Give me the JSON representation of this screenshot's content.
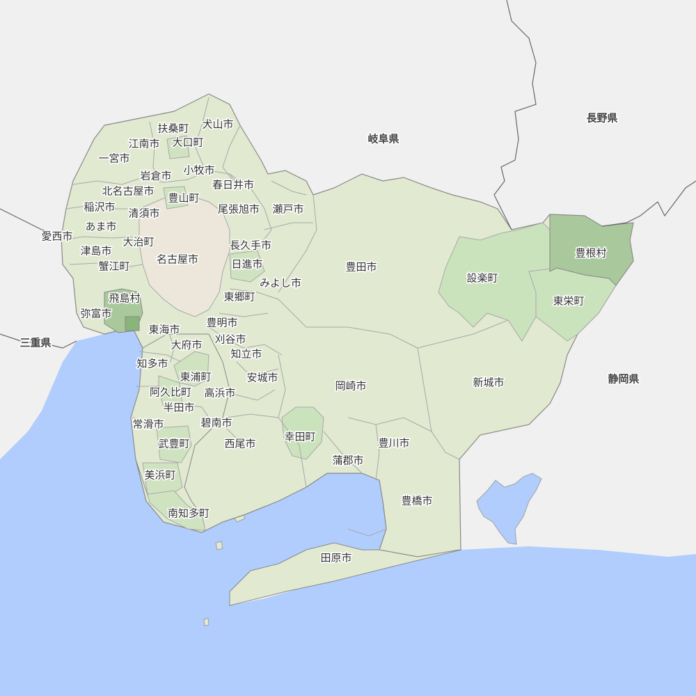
{
  "map": {
    "colors": {
      "sea": "#b0cdfd",
      "outside": "#f0f0f0",
      "land": "#e1e9d0",
      "nagoya": "#ece7da",
      "medium": "#d0e3c0",
      "highlight_light": "#cbe3bd",
      "highlight": "#a9c99c",
      "highlight_dark": "#8ab57a",
      "border": "#a0a0a0"
    },
    "prefectures": [
      {
        "id": "gifu",
        "label": "岐阜県"
      },
      {
        "id": "nagano",
        "label": "長野県"
      },
      {
        "id": "shizuoka",
        "label": "静岡県"
      },
      {
        "id": "mie",
        "label": "三重県"
      }
    ],
    "municipalities": [
      {
        "id": "inuyama",
        "label": "犬山市"
      },
      {
        "id": "fuso",
        "label": "扶桑町"
      },
      {
        "id": "konan",
        "label": "江南市"
      },
      {
        "id": "oguchi",
        "label": "大口町"
      },
      {
        "id": "ichinomiya",
        "label": "一宮市"
      },
      {
        "id": "iwakura",
        "label": "岩倉市"
      },
      {
        "id": "komaki",
        "label": "小牧市"
      },
      {
        "id": "kasugai",
        "label": "春日井市"
      },
      {
        "id": "kitanagoya",
        "label": "北名古屋市"
      },
      {
        "id": "toyoyama",
        "label": "豊山町"
      },
      {
        "id": "inazawa",
        "label": "稲沢市"
      },
      {
        "id": "kiyosu",
        "label": "清須市"
      },
      {
        "id": "owariasahi",
        "label": "尾張旭市"
      },
      {
        "id": "seto",
        "label": "瀬戸市"
      },
      {
        "id": "ama",
        "label": "あま市"
      },
      {
        "id": "aisai",
        "label": "愛西市"
      },
      {
        "id": "oharu",
        "label": "大治町"
      },
      {
        "id": "nagakute",
        "label": "長久手市"
      },
      {
        "id": "tsushima",
        "label": "津島市"
      },
      {
        "id": "nagoya",
        "label": "名古屋市"
      },
      {
        "id": "kanie",
        "label": "蟹江町"
      },
      {
        "id": "nisshin",
        "label": "日進市"
      },
      {
        "id": "toyota",
        "label": "豊田市"
      },
      {
        "id": "miyoshi",
        "label": "みよし市"
      },
      {
        "id": "tobishima",
        "label": "飛島村"
      },
      {
        "id": "togo",
        "label": "東郷町"
      },
      {
        "id": "yatomi",
        "label": "弥富市"
      },
      {
        "id": "toyoake",
        "label": "豊明市"
      },
      {
        "id": "tokai",
        "label": "東海市"
      },
      {
        "id": "kariya",
        "label": "刈谷市"
      },
      {
        "id": "obu",
        "label": "大府市"
      },
      {
        "id": "chiryu",
        "label": "知立市"
      },
      {
        "id": "chita",
        "label": "知多市"
      },
      {
        "id": "higashiura",
        "label": "東浦町"
      },
      {
        "id": "anjo",
        "label": "安城市"
      },
      {
        "id": "agui",
        "label": "阿久比町"
      },
      {
        "id": "takahama",
        "label": "高浜市"
      },
      {
        "id": "handa",
        "label": "半田市"
      },
      {
        "id": "tokoname",
        "label": "常滑市"
      },
      {
        "id": "hekinan",
        "label": "碧南市"
      },
      {
        "id": "taketoyo",
        "label": "武豊町"
      },
      {
        "id": "nishio",
        "label": "西尾市"
      },
      {
        "id": "kota",
        "label": "幸田町"
      },
      {
        "id": "okazaki",
        "label": "岡崎市"
      },
      {
        "id": "toyokawa",
        "label": "豊川市"
      },
      {
        "id": "gamagori",
        "label": "蒲郡市"
      },
      {
        "id": "mihama",
        "label": "美浜町"
      },
      {
        "id": "minamichita",
        "label": "南知多町"
      },
      {
        "id": "toyohashi",
        "label": "豊橋市"
      },
      {
        "id": "tahara",
        "label": "田原市"
      },
      {
        "id": "shinshiro",
        "label": "新城市"
      },
      {
        "id": "shitara",
        "label": "設楽町"
      },
      {
        "id": "toei",
        "label": "東栄町"
      },
      {
        "id": "toyone",
        "label": "豊根村"
      }
    ]
  }
}
